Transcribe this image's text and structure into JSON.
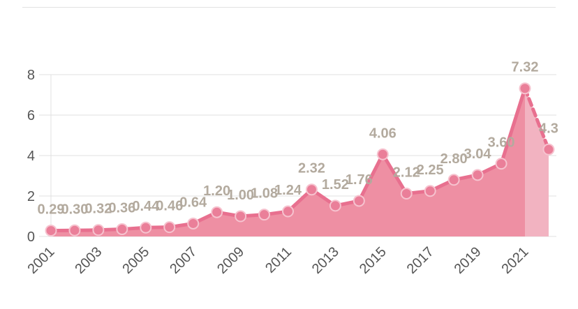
{
  "chart_data": {
    "type": "area",
    "title": "",
    "xlabel": "",
    "ylabel": "",
    "ylim": [
      0,
      8
    ],
    "yticks": [
      0,
      2,
      4,
      6,
      8
    ],
    "grid": true,
    "legend": "none",
    "x": [
      "2001",
      "2002",
      "2003",
      "2004",
      "2005",
      "2006",
      "2007",
      "2008",
      "2009",
      "2010",
      "2011",
      "2012",
      "2013",
      "2014",
      "2015",
      "2016",
      "2017",
      "2018",
      "2019",
      "2020",
      "2021",
      "2022"
    ],
    "x_tick_labels": [
      "2001",
      "2003",
      "2005",
      "2007",
      "2009",
      "2011",
      "2013",
      "2015",
      "2017",
      "2019",
      "2021"
    ],
    "values": [
      0.29,
      0.3,
      0.32,
      0.36,
      0.44,
      0.46,
      0.64,
      1.2,
      1.0,
      1.08,
      1.24,
      2.32,
      1.52,
      1.76,
      4.06,
      2.12,
      2.25,
      2.8,
      3.04,
      3.6,
      7.32,
      4.3
    ],
    "data_labels": [
      "0.29",
      "0.30",
      "0.32",
      "0.36",
      "0.44",
      "0.46",
      "0.64",
      "1.20",
      "1.00",
      "1.08",
      "1.24",
      "2.32",
      "1.52",
      "1.76",
      "4.06",
      "2.12",
      "2.25",
      "2.80",
      "3.04",
      "3.60",
      "7.32",
      "4.3"
    ],
    "last_segment": "dashed",
    "colors": {
      "line": "#e8708f",
      "fill": "#ee8fa3",
      "fill_last": "#f2b3c1",
      "marker": "#ea7f99",
      "label": "#b3aa9e",
      "grid": "#e0e0e0"
    }
  }
}
